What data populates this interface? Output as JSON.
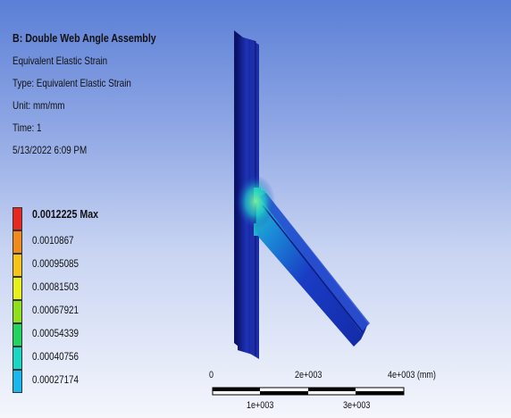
{
  "header": {
    "title": "B: Double Web Angle Assembly",
    "result_name": "Equivalent Elastic Strain",
    "type_line": "Type: Equivalent Elastic Strain",
    "unit_line": "Unit: mm/mm",
    "time_line": "Time: 1",
    "date_line": "5/13/2022 6:09 PM"
  },
  "legend": {
    "items": [
      {
        "label": "0.0012225 Max",
        "color": "#e8281e"
      },
      {
        "label": "0.0010867",
        "color": "#f08a1c"
      },
      {
        "label": "0.00095085",
        "color": "#f6c417"
      },
      {
        "label": "0.00081503",
        "color": "#e6f01a"
      },
      {
        "label": "0.00067921",
        "color": "#8ee01c"
      },
      {
        "label": "0.00054339",
        "color": "#22d45e"
      },
      {
        "label": "0.00040756",
        "color": "#1ad6c4"
      },
      {
        "label": "0.00027174",
        "color": "#18b8ee"
      }
    ]
  },
  "scale_bar": {
    "top_labels": [
      "0",
      "2e+003",
      "4e+003 (mm)"
    ],
    "bottom_labels": [
      "1e+003",
      "3e+003"
    ]
  },
  "colors": {
    "background_top": "#5b7fd6",
    "background_bottom": "#f4f6fc",
    "model_blue": "#1a2a9e",
    "model_dark": "#0b1470"
  }
}
